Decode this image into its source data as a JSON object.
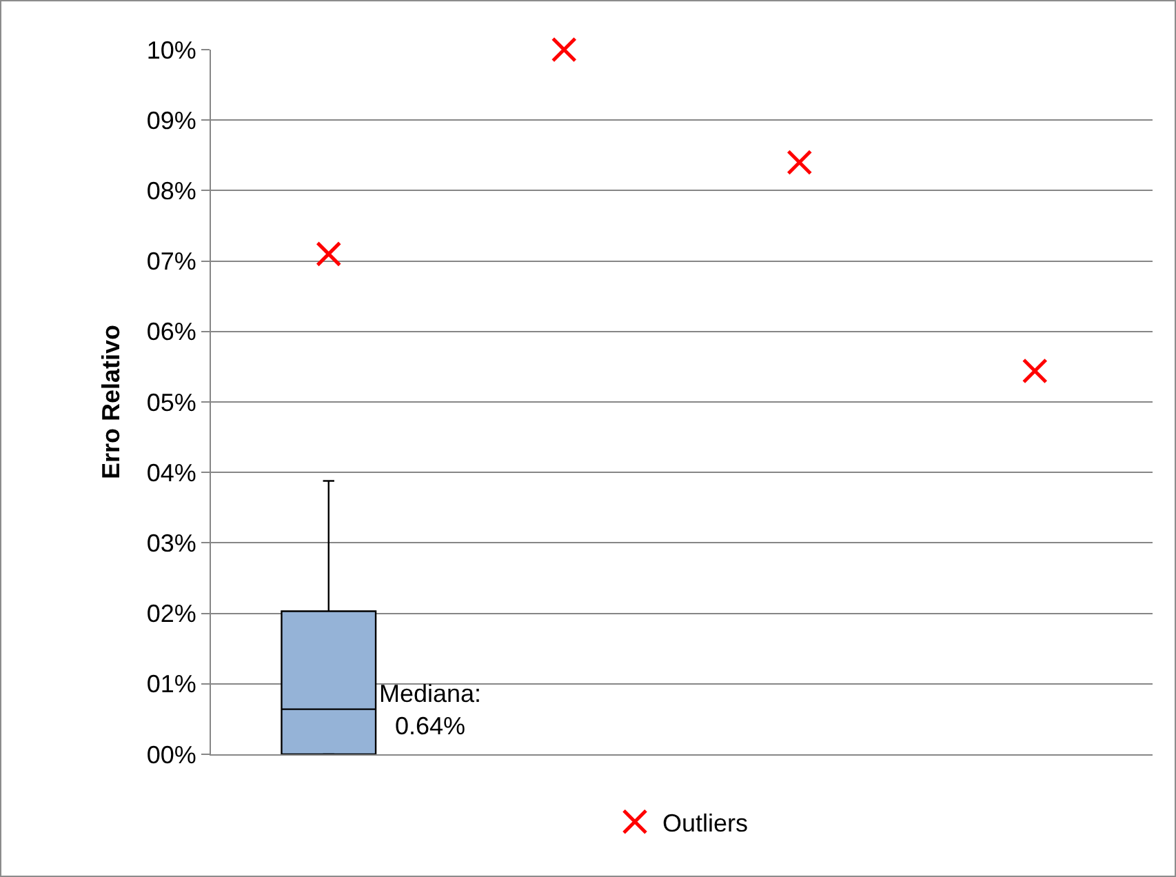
{
  "chart_data": {
    "type": "box",
    "ylabel": "Erro Relativo",
    "categories": [
      null,
      null,
      null,
      null
    ],
    "boxes": [
      {
        "low": 0,
        "q1": 0,
        "median": 0.64,
        "q3": 2.03,
        "high": 3.88
      },
      null,
      null,
      null
    ],
    "color": "#95b3d7",
    "series": [
      {
        "type": "scatter",
        "name": "Outliers",
        "color": "#ff0000",
        "marker": "cross",
        "values": [
          7.1,
          10,
          8.4,
          5.44
        ]
      }
    ],
    "ylim": [
      0,
      10
    ],
    "yticks": [
      {
        "value": 0,
        "label": "00%"
      },
      {
        "value": 1,
        "label": "01%"
      },
      {
        "value": 2,
        "label": "02%"
      },
      {
        "value": 3,
        "label": "03%"
      },
      {
        "value": 4,
        "label": "04%"
      },
      {
        "value": 5,
        "label": "05%"
      },
      {
        "value": 6,
        "label": "06%"
      },
      {
        "value": 7,
        "label": "07%"
      },
      {
        "value": 8,
        "label": "08%"
      },
      {
        "value": 9,
        "label": "09%"
      },
      {
        "value": 10,
        "label": "10%"
      }
    ],
    "grid": "y",
    "legend": "bottom",
    "annotations": [
      "Mediana:\n0.64%"
    ]
  }
}
